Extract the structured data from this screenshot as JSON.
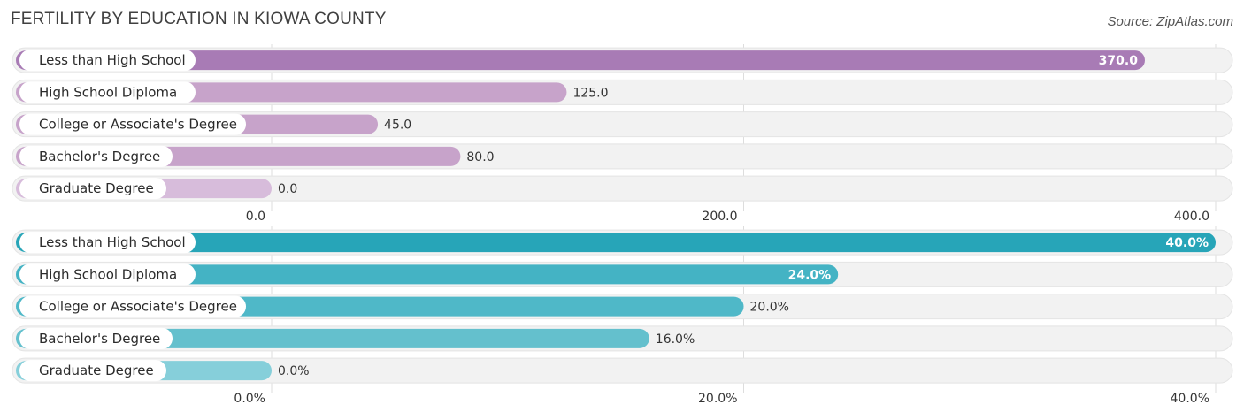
{
  "title": "FERTILITY BY EDUCATION IN KIOWA COUNTY",
  "source": "Source: ZipAtlas.com",
  "chart_data": [
    {
      "type": "bar",
      "orientation": "horizontal",
      "categories": [
        "Less than High School",
        "High School Diploma",
        "College or Associate's Degree",
        "Bachelor's Degree",
        "Graduate Degree"
      ],
      "values": [
        370.0,
        125.0,
        45.0,
        80.0,
        0.0
      ],
      "value_labels": [
        "370.0",
        "125.0",
        "45.0",
        "80.0",
        "0.0"
      ],
      "xlim": [
        0,
        400
      ],
      "ticks": [
        "0.0",
        "200.0",
        "400.0"
      ],
      "tick_values": [
        0,
        200,
        400
      ],
      "grid": true,
      "colors": [
        "#a87bb5",
        "#c7a3ca",
        "#c7a3ca",
        "#c7a3ca",
        "#d7bcdb"
      ]
    },
    {
      "type": "bar",
      "orientation": "horizontal",
      "categories": [
        "Less than High School",
        "High School Diploma",
        "College or Associate's Degree",
        "Bachelor's Degree",
        "Graduate Degree"
      ],
      "values": [
        40.0,
        24.0,
        20.0,
        16.0,
        0.0
      ],
      "value_labels": [
        "40.0%",
        "24.0%",
        "20.0%",
        "16.0%",
        "0.0%"
      ],
      "xlim": [
        0,
        40
      ],
      "ticks": [
        "0.0%",
        "20.0%",
        "40.0%"
      ],
      "tick_values": [
        0,
        20,
        40
      ],
      "grid": true,
      "colors": [
        "#27a5b8",
        "#44b3c4",
        "#4fb8c8",
        "#64c0cd",
        "#86cfda"
      ]
    }
  ]
}
